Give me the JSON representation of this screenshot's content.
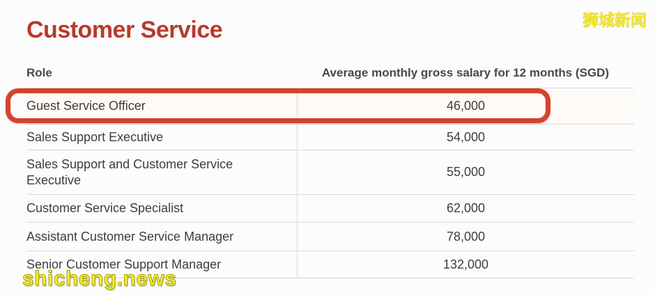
{
  "title": "Customer Service",
  "watermarks": {
    "site_name": "狮城新闻",
    "site_url": "shicheng.news"
  },
  "table": {
    "columns": [
      "Role",
      "Average monthly gross salary for 12 months (SGD)"
    ],
    "rows": [
      {
        "role": "Guest Service Officer",
        "salary": "46,000",
        "highlighted": true
      },
      {
        "role": "Sales Support Executive",
        "salary": "54,000",
        "highlighted": false
      },
      {
        "role": "Sales Support and Customer Service Executive",
        "salary": "55,000",
        "highlighted": false
      },
      {
        "role": "Customer Service Specialist",
        "salary": "62,000",
        "highlighted": false
      },
      {
        "role": "Assistant Customer Service Manager",
        "salary": "78,000",
        "highlighted": false
      },
      {
        "role": "Senior Customer Support Manager",
        "salary": "132,000",
        "highlighted": false
      }
    ]
  },
  "annotation": {
    "shape": "rounded-rectangle",
    "highlights_row": "Guest Service Officer"
  },
  "colors": {
    "title_red": "#b73a2c",
    "annotation_red": "#d4422c",
    "watermark_yellow": "#f2e42a",
    "text": "#3d3d3f",
    "header_text": "#48484a",
    "border": "#dad8da"
  }
}
